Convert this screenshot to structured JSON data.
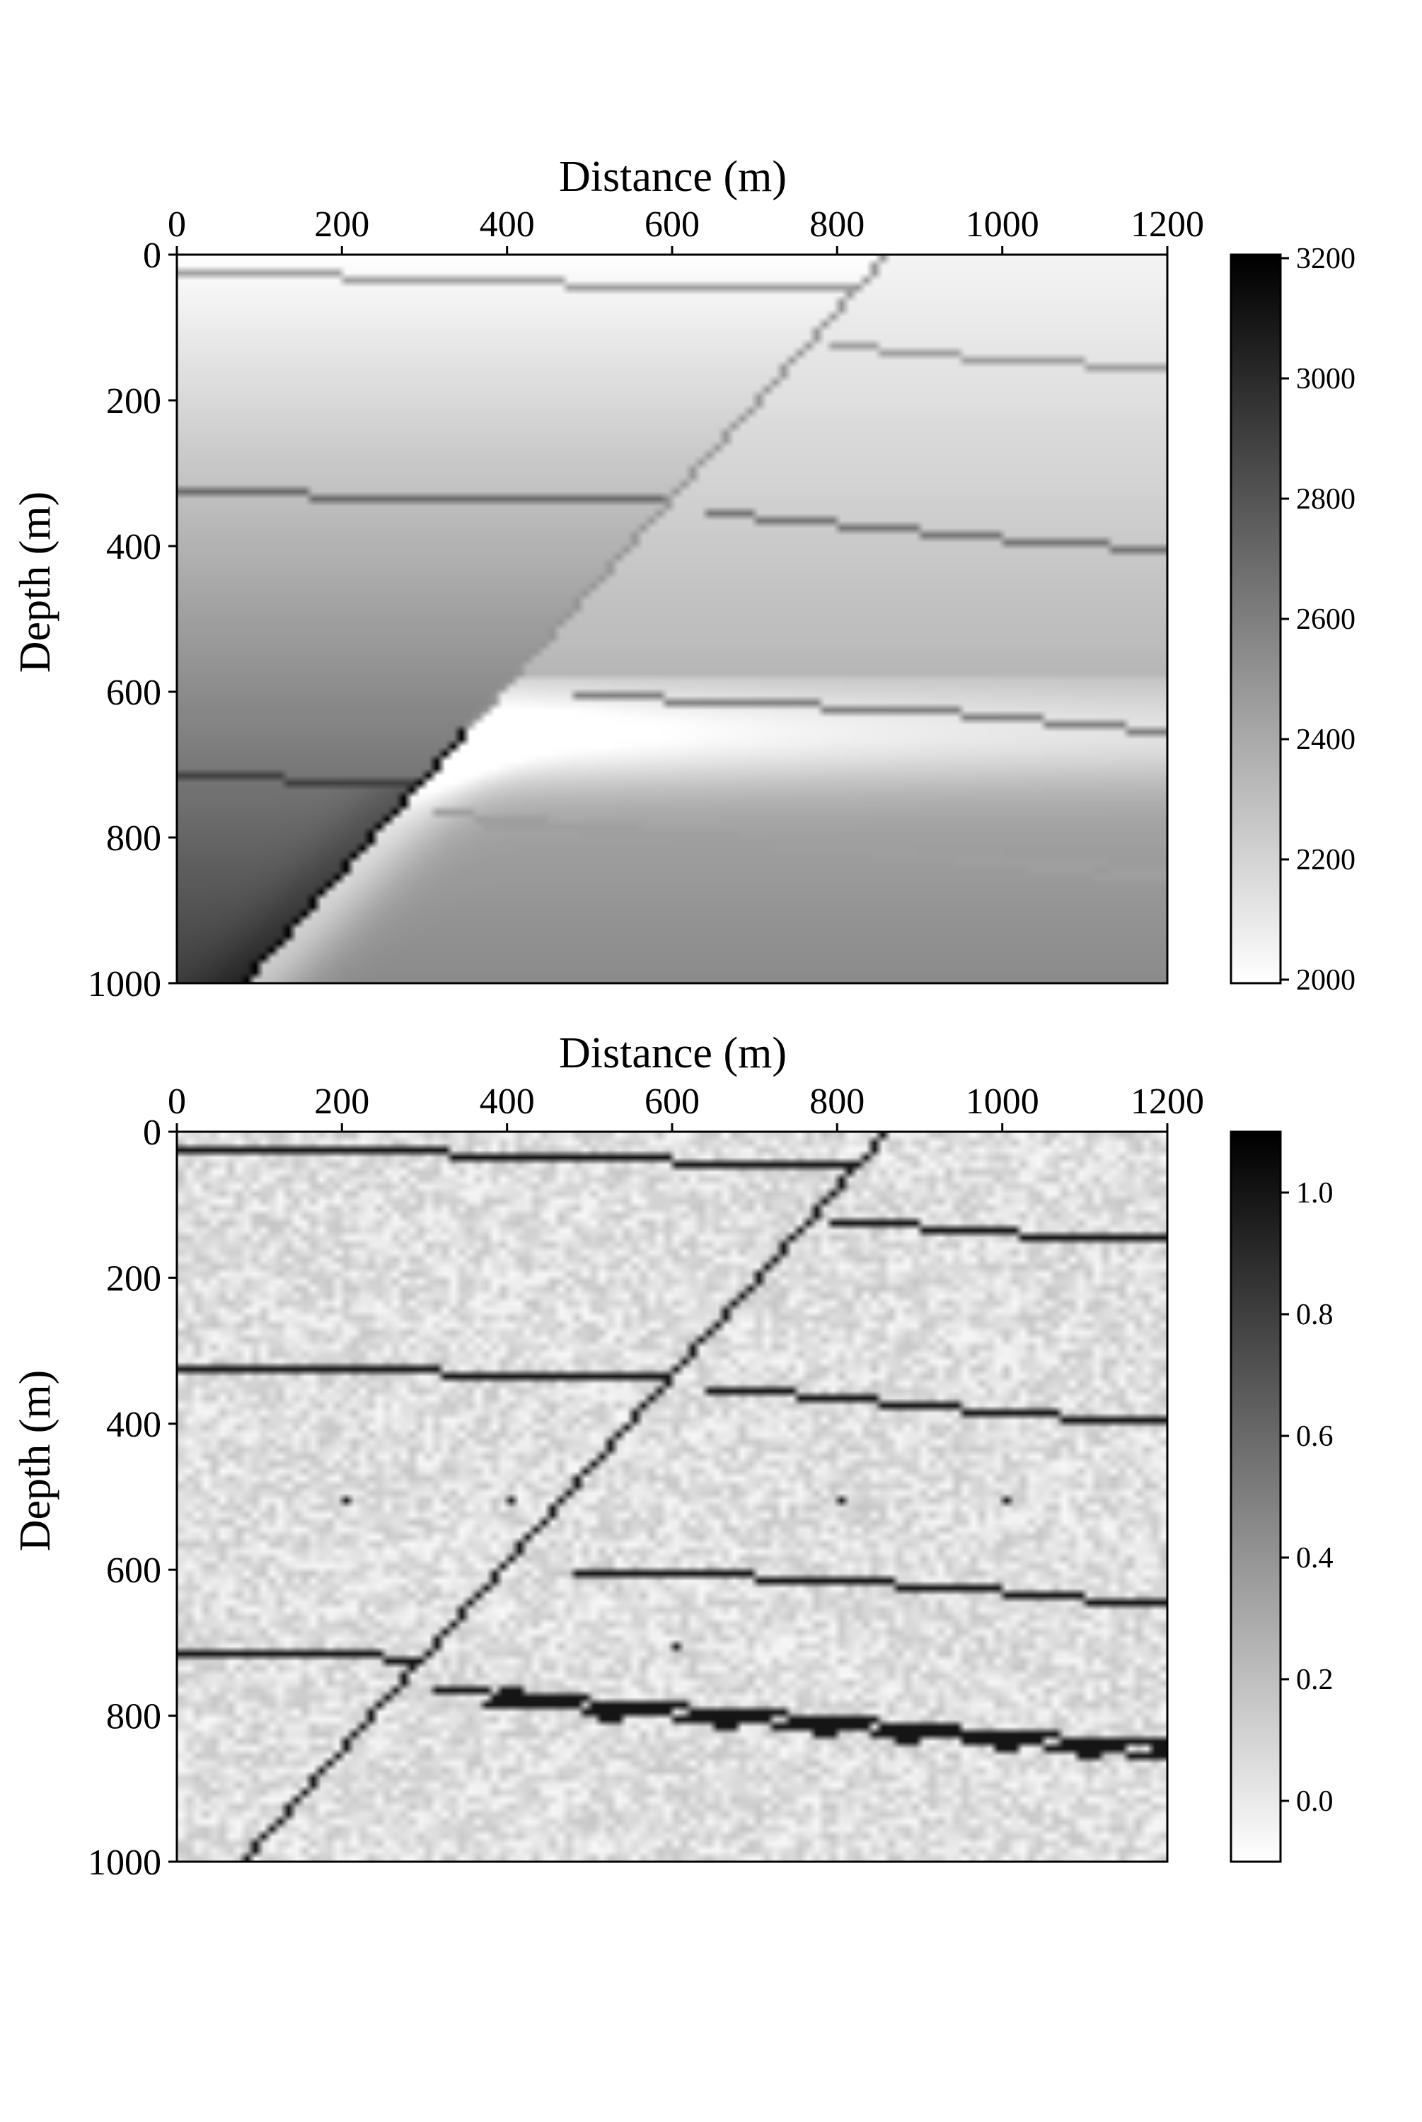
{
  "chart_data": [
    {
      "type": "heatmap",
      "xlabel": "Distance (m)",
      "ylabel": "Depth (m)",
      "xlim": [
        0,
        1200
      ],
      "ylim": [
        1000,
        0
      ],
      "x_axis_position": "top",
      "x_ticks": [
        "0",
        "200",
        "400",
        "600",
        "800",
        "1000",
        "1200"
      ],
      "y_ticks": [
        "0",
        "200",
        "400",
        "600",
        "800",
        "1000"
      ],
      "colormap": "gray_r",
      "colorbar": {
        "range": [
          2000,
          3200
        ],
        "ticks": [
          "2000",
          "2200",
          "2400",
          "2600",
          "2800",
          "3000",
          "3200"
        ]
      },
      "fault": {
        "top": [
          860,
          0
        ],
        "bottom": [
          80,
          1000
        ]
      },
      "left_block_gradient": {
        "top_value": 2000,
        "bottom_value": 2900
      },
      "right_block_gradient": {
        "top_value": 2050,
        "bottom_value": 2550
      },
      "horizons_left": [
        {
          "value": 2450,
          "depths": [
            [
              0,
              25
            ],
            [
              200,
              30
            ],
            [
              600,
              45
            ],
            [
              830,
              45
            ]
          ]
        },
        {
          "value": 2700,
          "depths": [
            [
              0,
              325
            ],
            [
              325,
              335
            ],
            [
              650,
              340
            ]
          ]
        },
        {
          "value": 2900,
          "depths": [
            [
              0,
              715
            ],
            [
              130,
              720
            ],
            [
              250,
              725
            ],
            [
              375,
              730
            ]
          ]
        }
      ],
      "horizons_right": [
        {
          "value": 2450,
          "depths": [
            [
              800,
              125
            ],
            [
              950,
              140
            ],
            [
              1100,
              150
            ],
            [
              1200,
              155
            ]
          ]
        },
        {
          "value": 2650,
          "depths": [
            [
              650,
              355
            ],
            [
              850,
              375
            ],
            [
              1000,
              390
            ],
            [
              1200,
              405
            ]
          ]
        },
        {
          "value": 2600,
          "depths": [
            [
              490,
              605
            ],
            [
              700,
              615
            ],
            [
              950,
              630
            ],
            [
              1200,
              655
            ]
          ]
        },
        {
          "value": 2450,
          "depths": [
            [
              320,
              765
            ],
            [
              500,
              785
            ],
            [
              800,
              810
            ],
            [
              1000,
              830
            ],
            [
              1200,
              845
            ]
          ]
        },
        {
          "value": 2450,
          "depths": [
            [
              380,
              780
            ],
            [
              600,
              800
            ],
            [
              900,
              825
            ],
            [
              1200,
              860
            ]
          ]
        }
      ]
    },
    {
      "type": "heatmap",
      "xlabel": "Distance (m)",
      "ylabel": "Depth (m)",
      "xlim": [
        0,
        1200
      ],
      "ylim": [
        1000,
        0
      ],
      "x_axis_position": "top",
      "x_ticks": [
        "0",
        "200",
        "400",
        "600",
        "800",
        "1000",
        "1200"
      ],
      "y_ticks": [
        "0",
        "200",
        "400",
        "600",
        "800",
        "1000"
      ],
      "colormap": "gray_r",
      "colorbar": {
        "range": [
          -0.1,
          1.1
        ],
        "ticks": [
          "0.0",
          "0.2",
          "0.4",
          "0.6",
          "0.8",
          "1.0"
        ]
      },
      "background_noise": {
        "mean": 0.05,
        "amplitude": 0.12
      },
      "fault": {
        "top": [
          860,
          0
        ],
        "bottom": [
          80,
          1000
        ]
      },
      "horizons_left": [
        {
          "value": 1.0,
          "depths": [
            [
              0,
              20
            ],
            [
              200,
              25
            ],
            [
              600,
              40
            ],
            [
              830,
              40
            ]
          ]
        },
        {
          "value": 1.0,
          "depths": [
            [
              0,
              320
            ],
            [
              325,
              330
            ],
            [
              650,
              335
            ]
          ]
        },
        {
          "value": 1.0,
          "depths": [
            [
              0,
              710
            ],
            [
              130,
              715
            ],
            [
              250,
              720
            ],
            [
              375,
              725
            ]
          ]
        }
      ],
      "horizons_right": [
        {
          "value": 1.0,
          "depths": [
            [
              800,
              120
            ],
            [
              950,
              135
            ],
            [
              1100,
              145
            ],
            [
              1200,
              150
            ]
          ]
        },
        {
          "value": 1.0,
          "depths": [
            [
              650,
              350
            ],
            [
              850,
              370
            ],
            [
              1000,
              385
            ],
            [
              1200,
              400
            ]
          ]
        },
        {
          "value": 1.0,
          "depths": [
            [
              490,
              600
            ],
            [
              700,
              610
            ],
            [
              950,
              625
            ],
            [
              1200,
              650
            ]
          ]
        },
        {
          "value": 1.0,
          "depths": [
            [
              320,
              765
            ],
            [
              500,
              780
            ],
            [
              800,
              805
            ],
            [
              1000,
              825
            ],
            [
              1200,
              840
            ]
          ]
        },
        {
          "value": 1.0,
          "depths": [
            [
              380,
              780
            ],
            [
              600,
              800
            ],
            [
              900,
              825
            ],
            [
              1200,
              855
            ]
          ]
        }
      ],
      "blobs": [
        [
          400,
          778
        ],
        [
          520,
          790
        ],
        [
          660,
          800
        ],
        [
          780,
          815
        ],
        [
          880,
          825
        ],
        [
          1000,
          835
        ],
        [
          1100,
          845
        ],
        [
          1190,
          848
        ]
      ],
      "points": [
        [
          200,
          500
        ],
        [
          400,
          500
        ],
        [
          800,
          500
        ],
        [
          1000,
          500
        ],
        [
          600,
          700
        ]
      ]
    }
  ]
}
